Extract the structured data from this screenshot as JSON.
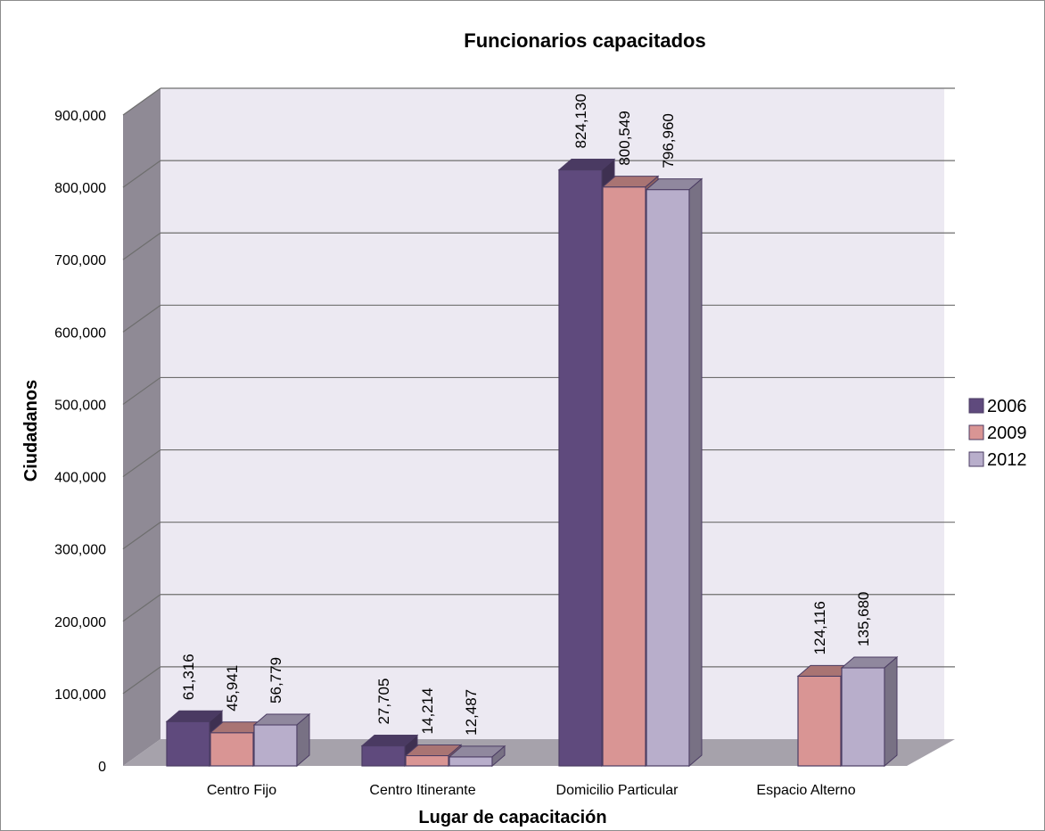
{
  "chart_data": {
    "type": "bar",
    "title": "Funcionarios capacitados",
    "xlabel": "Lugar de capacitación",
    "ylabel": "Ciudadanos",
    "categories": [
      "Centro Fijo",
      "Centro Itinerante",
      "Domicilio Particular",
      "Espacio Alterno"
    ],
    "series": [
      {
        "name": "2006",
        "values": [
          61316,
          27705,
          824130,
          null
        ],
        "labels": [
          "61,316",
          "27,705",
          "824,130",
          ""
        ],
        "color": "#5f4a7d"
      },
      {
        "name": "2009",
        "values": [
          45941,
          14214,
          800549,
          124116
        ],
        "labels": [
          "45,941",
          "14,214",
          "800,549",
          "124,116"
        ],
        "color": "#d99594"
      },
      {
        "name": "2012",
        "values": [
          56779,
          12487,
          796960,
          135680
        ],
        "labels": [
          "56,779",
          "12,487",
          "796,960",
          "135,680"
        ],
        "color": "#b8aecb"
      }
    ],
    "yticks": [
      "0",
      "100,000",
      "200,000",
      "300,000",
      "400,000",
      "500,000",
      "600,000",
      "700,000",
      "800,000",
      "900,000"
    ],
    "ylim": [
      0,
      900000
    ],
    "grid": true,
    "legend": "right",
    "style": "3d-clustered-column"
  }
}
